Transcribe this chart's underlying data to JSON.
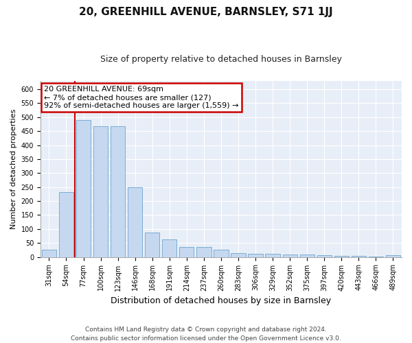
{
  "title": "20, GREENHILL AVENUE, BARNSLEY, S71 1JJ",
  "subtitle": "Size of property relative to detached houses in Barnsley",
  "xlabel": "Distribution of detached houses by size in Barnsley",
  "ylabel": "Number of detached properties",
  "footnote": "Contains HM Land Registry data © Crown copyright and database right 2024.\nContains public sector information licensed under the Open Government Licence v3.0.",
  "categories": [
    "31sqm",
    "54sqm",
    "77sqm",
    "100sqm",
    "123sqm",
    "146sqm",
    "168sqm",
    "191sqm",
    "214sqm",
    "237sqm",
    "260sqm",
    "283sqm",
    "306sqm",
    "329sqm",
    "352sqm",
    "375sqm",
    "397sqm",
    "420sqm",
    "443sqm",
    "466sqm",
    "489sqm"
  ],
  "values": [
    27,
    233,
    490,
    468,
    468,
    248,
    88,
    62,
    35,
    35,
    25,
    14,
    10,
    10,
    8,
    8,
    6,
    5,
    3,
    2,
    6
  ],
  "bar_color": "#c5d8f0",
  "bar_edge_color": "#7aadd4",
  "vline_x": 2.0,
  "vline_color": "#cc0000",
  "annotation_text": "20 GREENHILL AVENUE: 69sqm\n← 7% of detached houses are smaller (127)\n92% of semi-detached houses are larger (1,559) →",
  "annotation_box_facecolor": "#ffffff",
  "annotation_box_edgecolor": "#cc0000",
  "ylim": [
    0,
    630
  ],
  "yticks": [
    0,
    50,
    100,
    150,
    200,
    250,
    300,
    350,
    400,
    450,
    500,
    550,
    600
  ],
  "fig_facecolor": "#ffffff",
  "ax_facecolor": "#e8eef7",
  "grid_color": "#ffffff",
  "title_fontsize": 11,
  "subtitle_fontsize": 9,
  "ylabel_fontsize": 8,
  "xlabel_fontsize": 9,
  "tick_fontsize": 7,
  "annot_fontsize": 8,
  "footnote_fontsize": 6.5
}
